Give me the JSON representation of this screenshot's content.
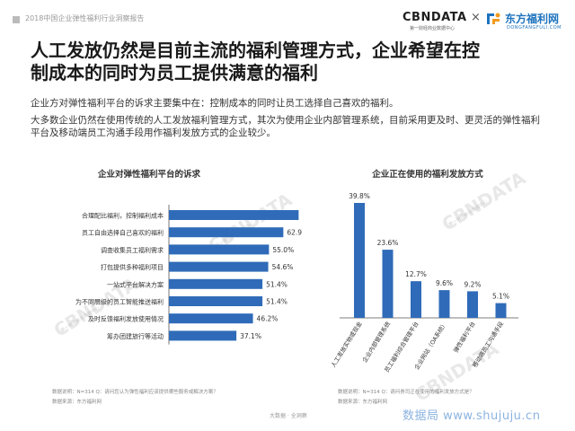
{
  "header": {
    "report_title": "2018中国企业弹性福利行业洞察报告",
    "cbn_brand": "CBNDATA",
    "cbn_tagline": "第一财经商业数据中心",
    "separator": "×",
    "df_name": "东方福利网",
    "df_url": "DONGFANGFULI.COM"
  },
  "headline": {
    "line1": "人工发放仍然是目前主流的福利管理方式，企业希望在控",
    "line2": "制成本的同时为员工提供满意的福利"
  },
  "body": {
    "p1": "企业方对弹性福利平台的诉求主要集中在：控制成本的同时让员工选择自己喜欢的福利。",
    "p2": "大多数企业仍然在使用传统的人工发放福利管理方式，其次为使用企业内部管理系统，目前采用更及时、更灵活的弹性福利平台及移动端员工沟通手段用作福利发放方式的企业较少。"
  },
  "watermarks": {
    "brand": "CBNDATA",
    "tag": "第一财经商业数据中心"
  },
  "footer": {
    "center_text": "大数据 · 全洞察",
    "site_watermark": "数据局 www.shujuju.cn",
    "left_note": "数据说明：N=314  Q：请问您认为弹性福利应该提供哪些服务或解决方案？",
    "left_source": "数据来源：东方福利网",
    "right_note": "数据说明：N=314  Q：请问贵司正在使用的福利发放方式是？",
    "right_source": "数据来源：东方福利网"
  },
  "chart_data": [
    {
      "type": "bar",
      "orientation": "horizontal",
      "title": "企业对弹性福利平台的诉求",
      "categories": [
        "合理配比福利，控制福利成本",
        "员工自由选择自己喜欢的福利",
        "调查收集员工福利需求",
        "打包提供多种福利项目",
        "一站式平台解决方案",
        "为不同层级的员工智能推送福利",
        "及时反馈福利发放使用情况",
        "筹办团建旅行等活动"
      ],
      "values": [
        71.3,
        62.9,
        55.0,
        54.6,
        51.4,
        51.4,
        46.2,
        37.1
      ],
      "labels": [
        "71.3%",
        "62.9%",
        "55.0%",
        "54.6%",
        "51.4%",
        "51.4%",
        "46.2%",
        "37.1%"
      ],
      "xlim": [
        0,
        100
      ],
      "bar_color": "#2f6bb8"
    },
    {
      "type": "bar",
      "orientation": "vertical",
      "title": "企业正在使用的福利发放方式",
      "categories": [
        "人工发放实物或现金",
        "企业内部管理系统",
        "员工福利综合管理平台",
        "企业网站（OA系统）",
        "弹性福利平台",
        "移动端员工沟通手段"
      ],
      "values": [
        39.8,
        23.6,
        12.7,
        9.6,
        9.2,
        5.1
      ],
      "labels": [
        "39.8%",
        "23.6%",
        "12.7%",
        "9.6%",
        "9.2%",
        "5.1%"
      ],
      "ylim": [
        0,
        45
      ],
      "bar_color": "#2f6bb8"
    }
  ]
}
